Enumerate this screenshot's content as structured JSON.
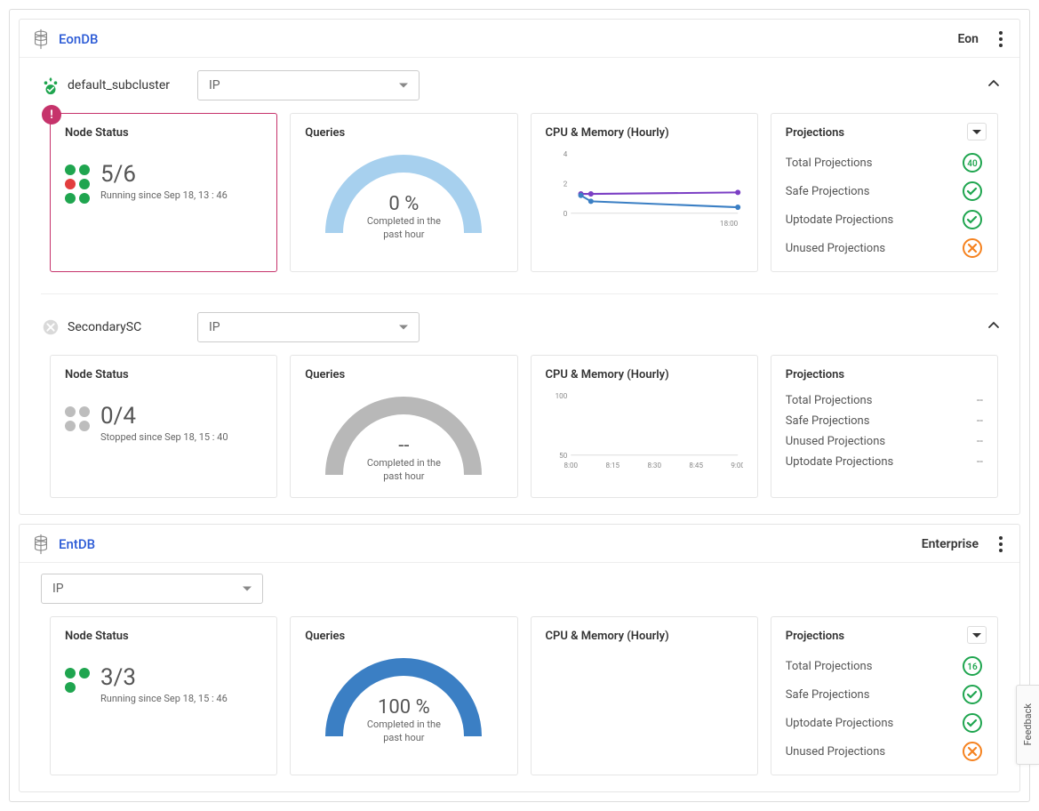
{
  "feedback_label": "Feedback",
  "select_label": "IP",
  "colors": {
    "green": "#1fa54f",
    "red": "#e23e3e",
    "gray": "#bdbdbd",
    "orange": "#f5821f",
    "gauge_light_blue": "#a7d0ee",
    "gauge_gray": "#b8b8b8",
    "gauge_blue": "#3b7fc4",
    "line_purple": "#7b3fc4",
    "line_blue": "#3b7fc4",
    "alert": "#c6336b"
  },
  "databases": [
    {
      "name": "EonDB",
      "mode": "Eon",
      "subclusters": [
        {
          "name": "default_subcluster",
          "icon_type": "primary-ok",
          "node_status": {
            "alert": true,
            "count": "5/6",
            "status_text": "Running since Sep 18, 13 : 46",
            "dots": [
              "green",
              "green",
              "red",
              "green",
              "green",
              "green"
            ]
          },
          "queries": {
            "percent": "0 %",
            "subtitle": "Completed in the past hour",
            "gauge_pct": 0,
            "gauge_color": "#a7d0ee"
          },
          "cpu_memory": {
            "title": "CPU & Memory (Hourly)",
            "y_ticks": [
              "4",
              "2",
              "0"
            ],
            "x_ticks": [
              "18:00"
            ],
            "x_tick_align": "right",
            "ylim": [
              0,
              4
            ],
            "series": [
              {
                "color": "#7b3fc4",
                "points": [
                  [
                    0.06,
                    1.3
                  ],
                  [
                    0.12,
                    1.3
                  ],
                  [
                    1.0,
                    1.4
                  ]
                ]
              },
              {
                "color": "#3b7fc4",
                "points": [
                  [
                    0.06,
                    1.2
                  ],
                  [
                    0.12,
                    0.8
                  ],
                  [
                    1.0,
                    0.4
                  ]
                ]
              }
            ]
          },
          "projections": {
            "has_dropdown": true,
            "items": [
              {
                "label": "Total Projections",
                "icon": "count",
                "value": "40",
                "color": "#1fa54f"
              },
              {
                "label": "Safe Projections",
                "icon": "check",
                "color": "#1fa54f"
              },
              {
                "label": "Uptodate Projections",
                "icon": "check",
                "color": "#1fa54f"
              },
              {
                "label": "Unused Projections",
                "icon": "cross",
                "color": "#f5821f"
              }
            ]
          }
        },
        {
          "name": "SecondarySC",
          "icon_type": "secondary-stopped",
          "node_status": {
            "alert": false,
            "count": "0/4",
            "status_text": "Stopped since Sep 18, 15 : 40",
            "dots": [
              "gray",
              "gray",
              "gray",
              "gray"
            ]
          },
          "queries": {
            "percent": "--",
            "subtitle": "Completed in the past hour",
            "gauge_pct": 0,
            "gauge_color": "#b8b8b8"
          },
          "cpu_memory": {
            "title": "CPU & Memory (Hourly)",
            "y_ticks": [
              "100",
              "50"
            ],
            "x_ticks": [
              "8:00",
              "8:15",
              "8:30",
              "8:45",
              "9:00"
            ],
            "x_tick_align": "spread",
            "ylim": [
              0,
              100
            ],
            "series": []
          },
          "projections": {
            "has_dropdown": false,
            "items": [
              {
                "label": "Total Projections",
                "icon": "none",
                "value": "--"
              },
              {
                "label": "Safe Projections",
                "icon": "none",
                "value": "--"
              },
              {
                "label": "Unused Projections",
                "icon": "none",
                "value": "--"
              },
              {
                "label": "Uptodate Projections",
                "icon": "none",
                "value": "--"
              }
            ]
          }
        }
      ]
    },
    {
      "name": "EntDB",
      "mode": "Enterprise",
      "plain_ip_row": true,
      "subclusters": [
        {
          "name": null,
          "node_status": {
            "alert": false,
            "count": "3/3",
            "status_text": "Running since Sep 18, 15 : 46",
            "dots": [
              "green",
              "green",
              "green"
            ]
          },
          "queries": {
            "percent": "100 %",
            "subtitle": "Completed in the past hour",
            "gauge_pct": 100,
            "gauge_color": "#3b7fc4"
          },
          "cpu_memory": {
            "title": "CPU & Memory (Hourly)",
            "y_ticks": [],
            "x_ticks": [],
            "ylim": [
              0,
              100
            ],
            "series": []
          },
          "projections": {
            "has_dropdown": true,
            "items": [
              {
                "label": "Total Projections",
                "icon": "count",
                "value": "16",
                "color": "#1fa54f"
              },
              {
                "label": "Safe Projections",
                "icon": "check",
                "color": "#1fa54f"
              },
              {
                "label": "Uptodate Projections",
                "icon": "check",
                "color": "#1fa54f"
              },
              {
                "label": "Unused Projections",
                "icon": "cross",
                "color": "#f5821f"
              }
            ]
          }
        }
      ]
    }
  ],
  "card_titles": {
    "node_status": "Node Status",
    "queries": "Queries",
    "projections": "Projections"
  }
}
